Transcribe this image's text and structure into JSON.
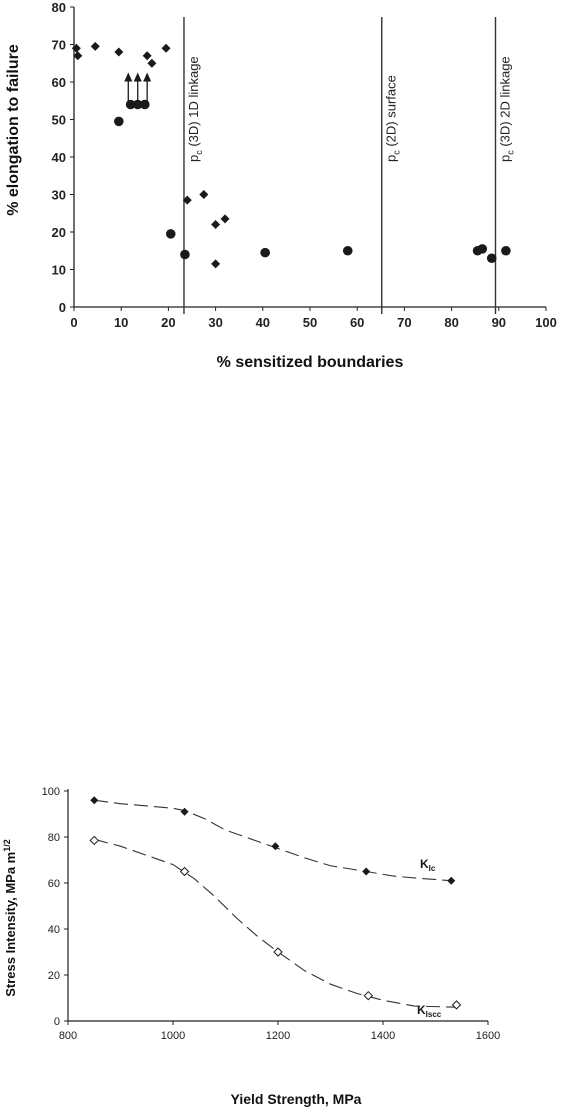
{
  "chart_data": [
    {
      "type": "scatter",
      "title": "",
      "xlabel": "% sensitized boundaries",
      "ylabel": "% elongation to failure",
      "xlim": [
        0,
        100
      ],
      "ylim": [
        0,
        80
      ],
      "x_ticks": [
        "0",
        "10",
        "20",
        "30",
        "40",
        "50",
        "60",
        "70",
        "80",
        "90",
        "100"
      ],
      "y_ticks": [
        "0",
        "10",
        "20",
        "30",
        "40",
        "50",
        "60",
        "70",
        "80"
      ],
      "grid": false,
      "series": [
        {
          "marker": "diamond",
          "points": [
            [
              0.5,
              69
            ],
            [
              0.8,
              67
            ],
            [
              4.5,
              69.5
            ],
            [
              9.5,
              68
            ],
            [
              15.5,
              67
            ],
            [
              16.5,
              65
            ],
            [
              19.5,
              69
            ],
            [
              24,
              28.5
            ],
            [
              27.5,
              30
            ],
            [
              30,
              22
            ],
            [
              32,
              23.5
            ],
            [
              30,
              11.5
            ]
          ]
        },
        {
          "marker": "circle",
          "points": [
            [
              9.5,
              49.5
            ],
            [
              12,
              54
            ],
            [
              13.5,
              54
            ],
            [
              15,
              54
            ],
            [
              20.5,
              19.5
            ],
            [
              23.5,
              14
            ],
            [
              40.5,
              14.5
            ],
            [
              58,
              15
            ],
            [
              85.5,
              15
            ],
            [
              86.5,
              15.5
            ],
            [
              88.5,
              13
            ],
            [
              91.5,
              15
            ]
          ]
        }
      ],
      "arrows": [
        {
          "x": 11.5,
          "from": 54,
          "to": 62
        },
        {
          "x": 13.5,
          "from": 54,
          "to": 62
        },
        {
          "x": 15.5,
          "from": 54,
          "to": 62
        }
      ],
      "vlines": [
        {
          "x": 23.3,
          "label_main": "p",
          "label_sub": "c",
          "label_rest": "(3D) 1D linkage"
        },
        {
          "x": 65.2,
          "label_main": "p",
          "label_sub": "c",
          "label_rest": "(2D) surface"
        },
        {
          "x": 89.3,
          "label_main": "p",
          "label_sub": "c",
          "label_rest": "(3D) 2D linkage"
        }
      ]
    },
    {
      "type": "line",
      "title": "",
      "xlabel": "Yield Strength, MPa",
      "ylabel": "Stress Intensity, MPa m",
      "ylabel_sup": "1/2",
      "xlim": [
        800,
        1600
      ],
      "ylim": [
        0,
        100
      ],
      "x_ticks": [
        "800",
        "1000",
        "1200",
        "1400",
        "1600"
      ],
      "y_ticks": [
        "0",
        "20",
        "40",
        "60",
        "80",
        "100"
      ],
      "grid": false,
      "series": [
        {
          "name_main": "K",
          "name_sub": "Ic",
          "marker": "filled-diamond",
          "points": [
            [
              850,
              96
            ],
            [
              1022,
              91
            ],
            [
              1195,
              76
            ],
            [
              1368,
              65
            ],
            [
              1530,
              61
            ]
          ],
          "curve": [
            [
              850,
              96
            ],
            [
              900,
              94.5
            ],
            [
              950,
              93.5
            ],
            [
              1000,
              92.5
            ],
            [
              1022,
              91.5
            ],
            [
              1060,
              88
            ],
            [
              1100,
              83
            ],
            [
              1150,
              79
            ],
            [
              1200,
              75
            ],
            [
              1250,
              71
            ],
            [
              1300,
              67.5
            ],
            [
              1368,
              65
            ],
            [
              1420,
              63
            ],
            [
              1470,
              62
            ],
            [
              1530,
              61
            ]
          ]
        },
        {
          "name_main": "K",
          "name_sub": "Iscc",
          "marker": "open-diamond",
          "points": [
            [
              850,
              78.5
            ],
            [
              1022,
              65
            ],
            [
              1200,
              30
            ],
            [
              1372,
              11
            ],
            [
              1540,
              7
            ]
          ],
          "curve": [
            [
              850,
              79
            ],
            [
              900,
              76
            ],
            [
              950,
              72
            ],
            [
              1000,
              68
            ],
            [
              1040,
              62
            ],
            [
              1080,
              54
            ],
            [
              1120,
              45
            ],
            [
              1160,
              37
            ],
            [
              1200,
              30
            ],
            [
              1250,
              22
            ],
            [
              1300,
              16
            ],
            [
              1350,
              12
            ],
            [
              1400,
              9
            ],
            [
              1460,
              6.5
            ],
            [
              1540,
              6
            ]
          ]
        }
      ]
    }
  ]
}
